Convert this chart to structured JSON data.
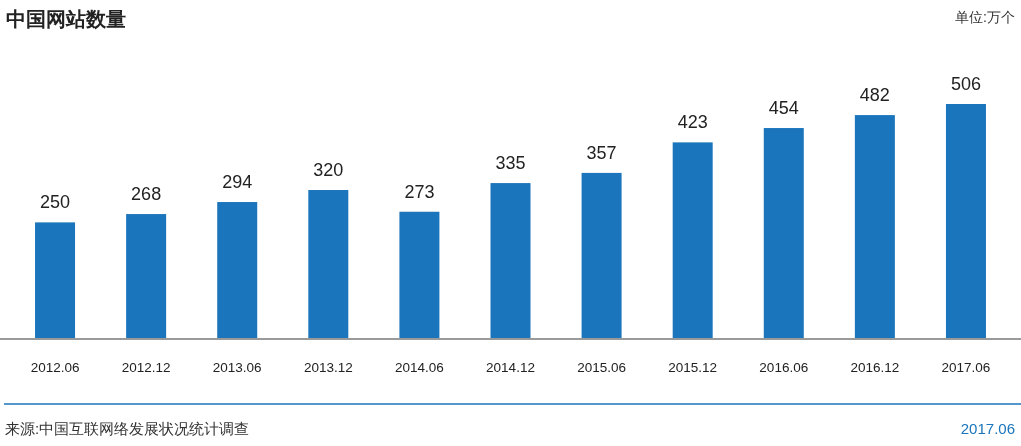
{
  "chart_data": {
    "type": "bar",
    "title": "中国网站数量",
    "categories": [
      "2012.06",
      "2012.12",
      "2013.06",
      "2013.12",
      "2014.06",
      "2014.12",
      "2015.06",
      "2015.12",
      "2016.06",
      "2016.12",
      "2017.06"
    ],
    "values": [
      250,
      268,
      294,
      320,
      273,
      335,
      357,
      423,
      454,
      482,
      506
    ],
    "color": "#1a75bc",
    "data_labels": true,
    "annotations": [
      "单位:万个",
      "来源:中国互联网络发展状况统计调查",
      "2017.06"
    ]
  }
}
